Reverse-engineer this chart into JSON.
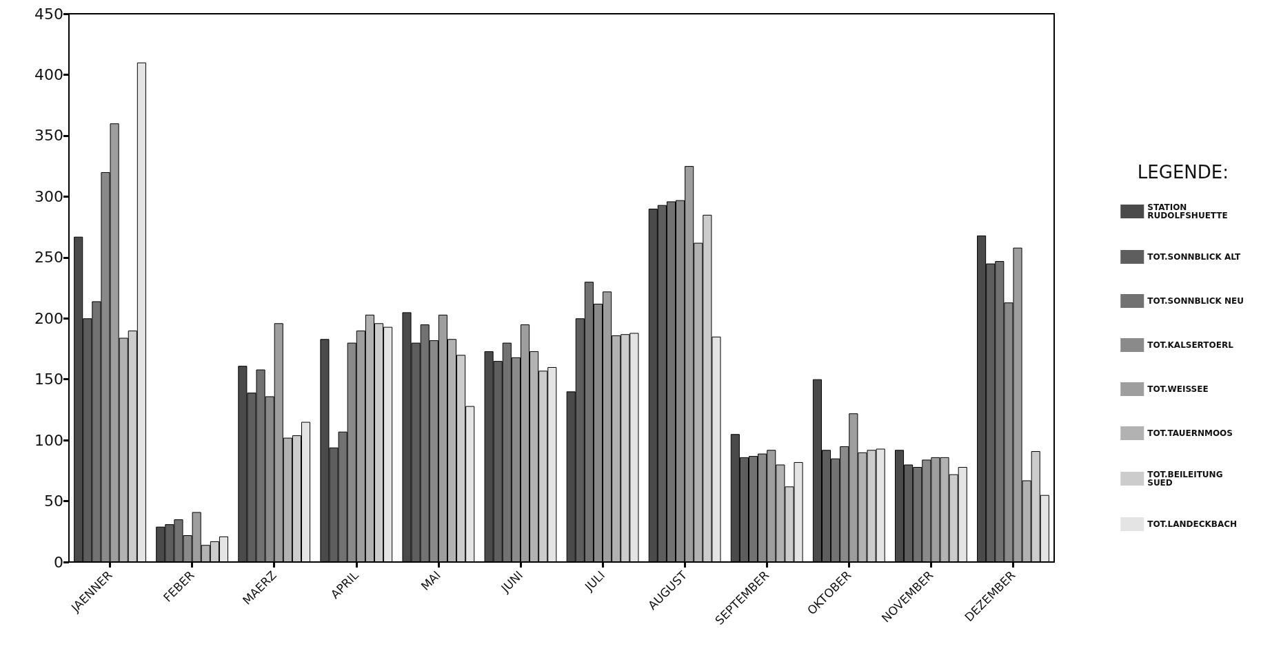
{
  "chart_data": {
    "type": "bar",
    "categories": [
      "JAENNER",
      "FEBER",
      "MAERZ",
      "APRIL",
      "MAI",
      "JUNI",
      "JULI",
      "AUGUST",
      "SEPTEMBER",
      "OKTOBER",
      "NOVEMBER",
      "DEZEMBER"
    ],
    "series": [
      {
        "name": "STATION RUDOLFSHUETTE",
        "color": "#4a4a4a",
        "values": [
          267,
          29,
          161,
          183,
          205,
          173,
          140,
          290,
          105,
          150,
          92,
          268
        ]
      },
      {
        "name": "TOT.SONNBLICK ALT",
        "color": "#5e5e5e",
        "values": [
          200,
          31,
          139,
          94,
          180,
          165,
          200,
          293,
          86,
          92,
          80,
          245
        ]
      },
      {
        "name": "TOT.SONNBLICK NEU",
        "color": "#727272",
        "values": [
          214,
          35,
          158,
          107,
          195,
          180,
          230,
          296,
          87,
          85,
          78,
          247
        ]
      },
      {
        "name": "TOT.KALSERTOERL",
        "color": "#8a8a8a",
        "values": [
          320,
          22,
          136,
          180,
          182,
          168,
          212,
          297,
          89,
          95,
          84,
          213
        ]
      },
      {
        "name": "TOT.WEISSEE",
        "color": "#9e9e9e",
        "values": [
          360,
          41,
          196,
          190,
          203,
          195,
          222,
          325,
          92,
          122,
          86,
          258
        ]
      },
      {
        "name": "TOT.TAUERNMOOS",
        "color": "#b2b2b2",
        "values": [
          184,
          14,
          102,
          203,
          183,
          173,
          186,
          262,
          80,
          90,
          86,
          67
        ]
      },
      {
        "name": "TOT.BEILEITUNG SUED",
        "color": "#cccccc",
        "values": [
          190,
          17,
          104,
          196,
          170,
          157,
          187,
          285,
          62,
          92,
          72,
          91
        ]
      },
      {
        "name": "TOT.LANDECKBACH",
        "color": "#e4e4e4",
        "values": [
          410,
          21,
          115,
          193,
          128,
          160,
          188,
          185,
          82,
          93,
          78,
          55
        ]
      }
    ],
    "ylim": [
      0,
      450
    ],
    "yticks": [
      0,
      50,
      100,
      150,
      200,
      250,
      300,
      350,
      400,
      450
    ],
    "legend": "right",
    "legend_title": "LEGENDE:",
    "grid": false
  }
}
